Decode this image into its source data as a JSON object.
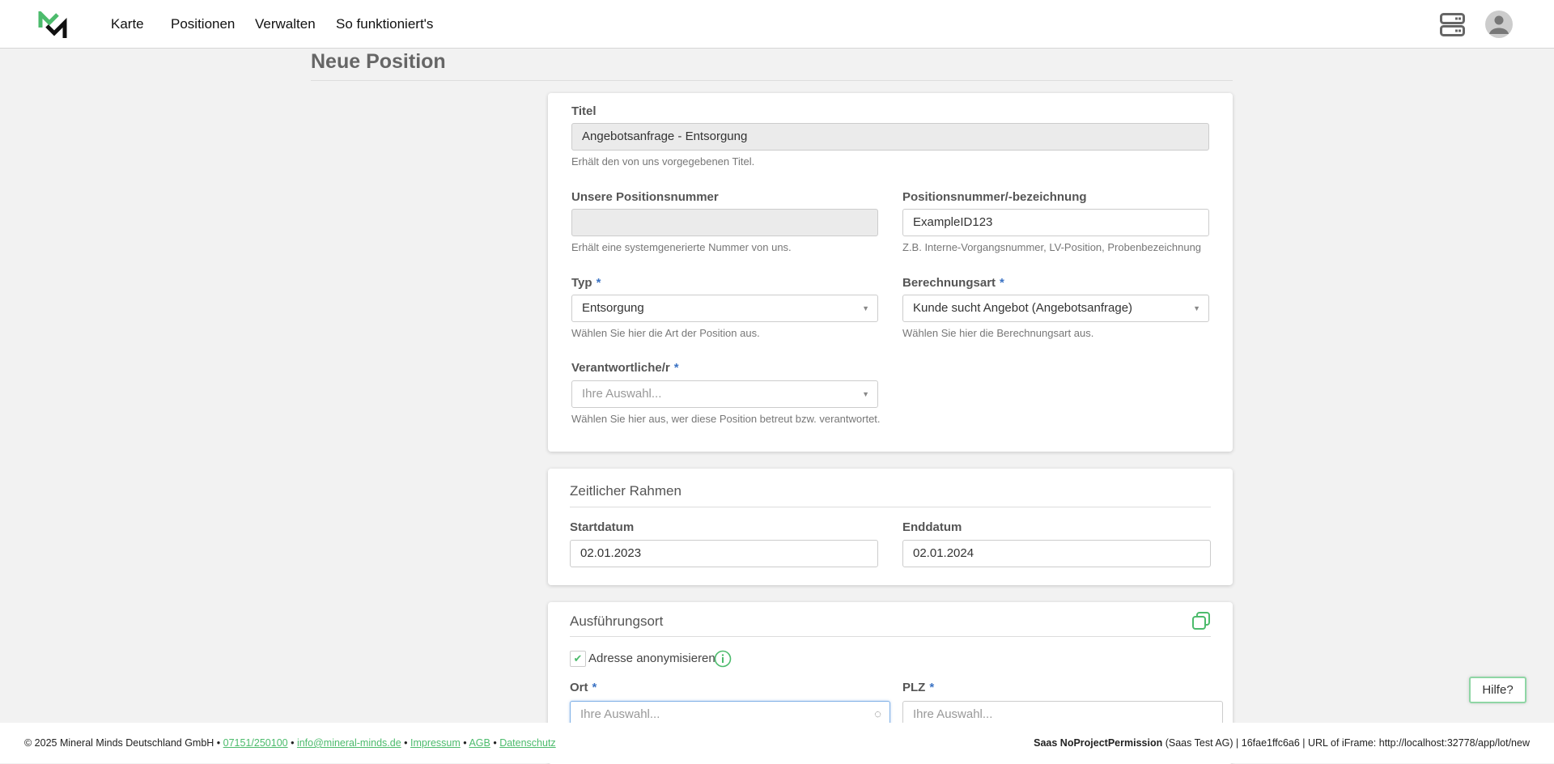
{
  "header": {
    "nav": [
      "Karte",
      "Positionen",
      "Verwalten",
      "So funktioniert's"
    ],
    "icons": {
      "logo": "mineral-minds-logo",
      "server": "server-icon",
      "avatar": "user-avatar-icon"
    },
    "brand_color": "#4cbb6c"
  },
  "page": {
    "title": "Neue Position"
  },
  "card_general": {
    "titel": {
      "label": "Titel",
      "value": "Angebotsanfrage - Entsorgung",
      "help": "Erhält den von uns vorgegebenen Titel."
    },
    "our_number": {
      "label": "Unsere Positionsnummer",
      "value": "",
      "help": "Erhält eine systemgenerierte Nummer von uns."
    },
    "position_number": {
      "label": "Positionsnummer/-bezeichnung",
      "value": "ExampleID123",
      "help": "Z.B. Interne-Vorgangsnummer, LV-Position, Probenbezeichnung"
    },
    "typ": {
      "label": "Typ",
      "required": "*",
      "value": "Entsorgung",
      "help": "Wählen Sie hier die Art der Position aus."
    },
    "berechnungsart": {
      "label": "Berechnungsart",
      "required": "*",
      "value": "Kunde sucht Angebot (Angebotsanfrage)",
      "help": "Wählen Sie hier die Berechnungsart aus."
    },
    "verantwortliche": {
      "label": "Verantwortliche/r",
      "required": "*",
      "placeholder": "Ihre Auswahl...",
      "help": "Wählen Sie hier aus, wer diese Position betreut bzw. verantwortet."
    }
  },
  "card_time": {
    "title": "Zeitlicher Rahmen",
    "start": {
      "label": "Startdatum",
      "value": "02.01.2023"
    },
    "end": {
      "label": "Enddatum",
      "value": "02.01.2024"
    }
  },
  "card_location": {
    "title": "Ausführungsort",
    "anonymize": {
      "label": "Adresse anonymisieren",
      "checked": true
    },
    "ort": {
      "label": "Ort",
      "required": "*",
      "placeholder": "Ihre Auswahl..."
    },
    "plz": {
      "label": "PLZ",
      "required": "*",
      "placeholder": "Ihre Auswahl..."
    }
  },
  "help_bubble": "Hilfe?",
  "footer": {
    "copyright": "© 2025 Mineral Minds Deutschland GmbH",
    "sep": " • ",
    "phone": "07151/250100",
    "email": "info@mineral-minds.de",
    "impressum": "Impressum",
    "agb": "AGB",
    "datenschutz": "Datenschutz",
    "user_bold": "Saas NoProjectPermission",
    "user_rest": " (Saas Test AG) | 16fae1ffc6a6 | URL of iFrame: http://localhost:32778/app/lot/new"
  }
}
